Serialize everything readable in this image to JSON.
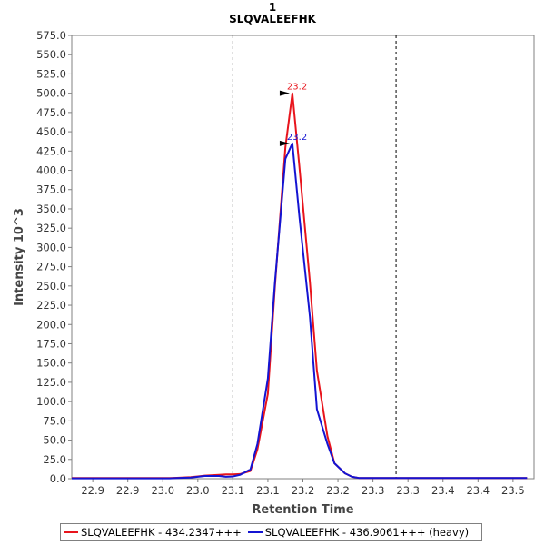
{
  "chart_data": {
    "type": "line",
    "title": "1",
    "subtitle": "SLQVALEEFHK",
    "xlabel": "Retention Time",
    "ylabel": "Intensity 10^3",
    "xlim": [
      22.85,
      23.51
    ],
    "ylim": [
      0,
      575
    ],
    "x_ticks": [
      {
        "value": 22.88,
        "label": "22.9"
      },
      {
        "value": 22.93,
        "label": "22.9"
      },
      {
        "value": 22.98,
        "label": "23.0"
      },
      {
        "value": 23.03,
        "label": "23.0"
      },
      {
        "value": 23.08,
        "label": "23.1"
      },
      {
        "value": 23.13,
        "label": "23.1"
      },
      {
        "value": 23.18,
        "label": "23.2"
      },
      {
        "value": 23.23,
        "label": "23.2"
      },
      {
        "value": 23.28,
        "label": "23.3"
      },
      {
        "value": 23.33,
        "label": "23.3"
      },
      {
        "value": 23.38,
        "label": "23.4"
      },
      {
        "value": 23.43,
        "label": "23.4"
      },
      {
        "value": 23.48,
        "label": "23.5"
      },
      {
        "value": 23.53,
        "label": "23.5"
      }
    ],
    "y_ticks": [
      0,
      25,
      50,
      75,
      100,
      125,
      150,
      175,
      200,
      225,
      250,
      275,
      300,
      325,
      350,
      375,
      400,
      425,
      450,
      475,
      500,
      525,
      550,
      575
    ],
    "y_tick_labels": [
      "0.0",
      "25.0",
      "50.0",
      "75.0",
      "100.0",
      "125.0",
      "150.0",
      "175.0",
      "200.0",
      "225.0",
      "250.0",
      "275.0",
      "300.0",
      "325.0",
      "350.0",
      "375.0",
      "400.0",
      "425.0",
      "450.0",
      "475.0",
      "500.0",
      "525.0",
      "550.0",
      "575.0"
    ],
    "boundaries": [
      23.08,
      23.313
    ],
    "grid": false,
    "legend_position": "bottom",
    "series": [
      {
        "name": "SLQVALEEFHK - 434.2347+++",
        "color": "#e8141c",
        "x": [
          22.85,
          22.86,
          22.87,
          22.88,
          22.9,
          22.91,
          22.92,
          22.94,
          22.95,
          22.96,
          22.98,
          22.99,
          23.0,
          23.02,
          23.03,
          23.04,
          23.06,
          23.07,
          23.08,
          23.09,
          23.105,
          23.115,
          23.13,
          23.14,
          23.155,
          23.165,
          23.175,
          23.19,
          23.2,
          23.215,
          23.225,
          23.24,
          23.25,
          23.26,
          23.275,
          23.29,
          23.3,
          23.31,
          23.33,
          23.34,
          23.35,
          23.37,
          23.38,
          23.39,
          23.41,
          23.42,
          23.43,
          23.45,
          23.46,
          23.47,
          23.49,
          23.5
        ],
        "y": [
          1,
          1,
          1,
          1,
          1,
          1,
          1,
          1,
          1,
          1,
          1,
          1,
          1.2,
          2,
          3,
          4,
          5,
          5.5,
          5.5,
          6,
          10,
          38,
          110,
          250,
          430,
          500,
          405,
          255,
          140,
          55,
          20,
          7,
          2.5,
          1,
          1,
          1,
          1,
          1,
          1,
          1,
          1,
          1,
          1,
          1,
          1,
          1,
          1,
          1,
          1,
          1,
          1,
          1
        ],
        "peak_label": "23.2"
      },
      {
        "name": "SLQVALEEFHK - 436.9061+++ (heavy)",
        "color": "#1414d2",
        "x": [
          22.85,
          22.86,
          22.87,
          22.88,
          22.9,
          22.91,
          22.92,
          22.94,
          22.95,
          22.96,
          22.98,
          22.99,
          23.0,
          23.02,
          23.03,
          23.04,
          23.06,
          23.07,
          23.08,
          23.09,
          23.105,
          23.115,
          23.13,
          23.14,
          23.155,
          23.165,
          23.175,
          23.19,
          23.2,
          23.215,
          23.225,
          23.24,
          23.25,
          23.26,
          23.275,
          23.29,
          23.3,
          23.31,
          23.33,
          23.34,
          23.35,
          23.37,
          23.38,
          23.39,
          23.41,
          23.42,
          23.43,
          23.45,
          23.46,
          23.47,
          23.49,
          23.5
        ],
        "y": [
          0.5,
          0.5,
          0.5,
          0.5,
          0.5,
          0.5,
          0.5,
          0.5,
          0.5,
          0.5,
          0.5,
          0.5,
          0.8,
          1.5,
          2.5,
          3.5,
          3.5,
          2.5,
          3,
          5,
          12,
          45,
          130,
          255,
          415,
          435,
          340,
          210,
          90,
          45,
          20,
          7,
          2.5,
          1,
          1,
          1,
          1,
          1,
          1,
          1,
          1,
          1,
          1,
          1,
          1,
          1,
          1,
          1,
          1,
          1,
          1,
          1
        ],
        "peak_label": "23.2"
      }
    ]
  }
}
